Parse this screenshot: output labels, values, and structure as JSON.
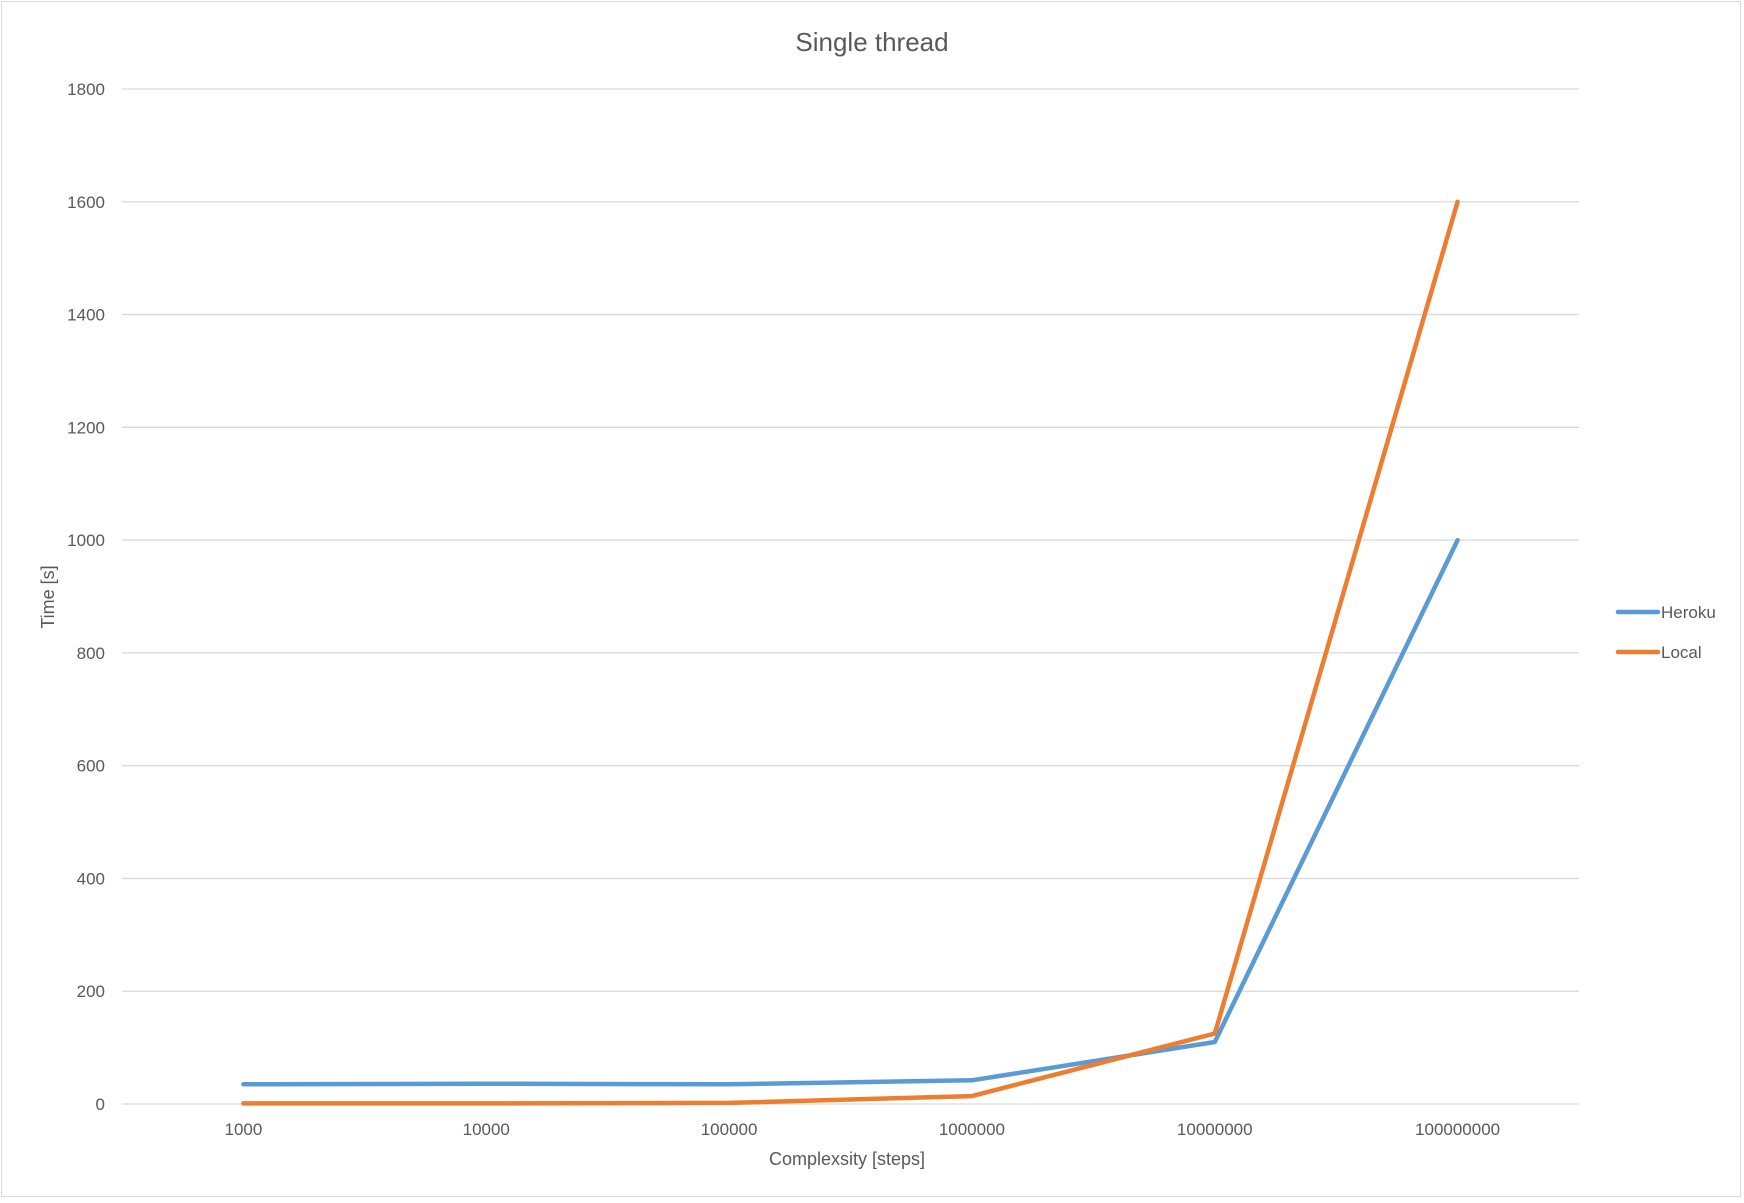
{
  "chart_data": {
    "type": "line",
    "title": "Single thread",
    "xlabel": "Complexsity [steps]",
    "ylabel": "Time [s]",
    "categories": [
      "1000",
      "10000",
      "100000",
      "1000000",
      "10000000",
      "100000000"
    ],
    "ylim": [
      0,
      1800
    ],
    "yticks": [
      0,
      200,
      400,
      600,
      800,
      1000,
      1200,
      1400,
      1600,
      1800
    ],
    "grid": true,
    "legend_position": "right",
    "series": [
      {
        "name": "Heroku",
        "color": "#5B9BD5",
        "values": [
          35,
          36,
          35,
          42,
          110,
          1000
        ]
      },
      {
        "name": "Local",
        "color": "#ED7D31",
        "values": [
          1,
          1,
          2,
          14,
          125,
          1600
        ]
      }
    ]
  }
}
